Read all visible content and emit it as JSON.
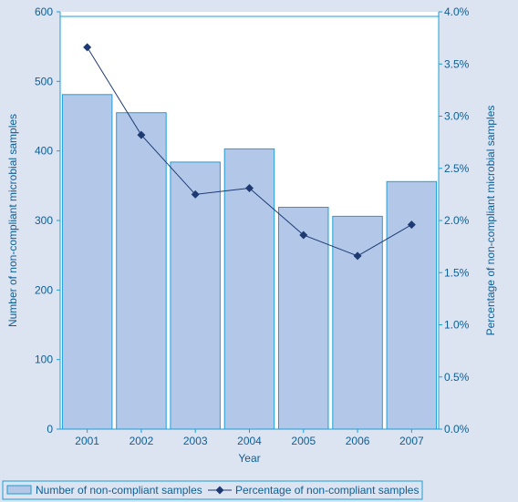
{
  "chart_data": {
    "type": "bar",
    "categories": [
      "2001",
      "2002",
      "2003",
      "2004",
      "2005",
      "2006",
      "2007"
    ],
    "xlabel": "Year",
    "ylabel": "Number of non-compliant microbial samples",
    "ylabel_right": "Percentage of non-compliant microbial samples",
    "ylim": [
      0,
      600
    ],
    "ylim_right": [
      0,
      4.0
    ],
    "yticks": [
      "0",
      "100",
      "200",
      "300",
      "400",
      "500",
      "600"
    ],
    "yticks_right": [
      "0.0%",
      "0.5%",
      "1.0%",
      "1.5%",
      "2.0%",
      "2.5%",
      "3.0%",
      "3.5%",
      "4.0%"
    ],
    "grid": false,
    "legend_position": "bottom",
    "series": [
      {
        "name": "Number of non-compliant samples",
        "kind": "bar",
        "axis": "left",
        "values": [
          481,
          455,
          384,
          403,
          319,
          306,
          356
        ]
      },
      {
        "name": "Percentage of non-compliant samples",
        "kind": "line",
        "marker": "diamond",
        "axis": "right",
        "values": [
          3.66,
          2.82,
          2.25,
          2.31,
          1.86,
          1.66,
          1.96
        ]
      }
    ],
    "colors": {
      "bar_fill": "#b3c7e8",
      "bar_stroke": "#1e9fd4",
      "line": "#1d3a73",
      "axis": "#1e9fd4",
      "text": "#0e5f96",
      "plot_bg": "#ffffff",
      "page_bg": "#dce3f1"
    }
  }
}
